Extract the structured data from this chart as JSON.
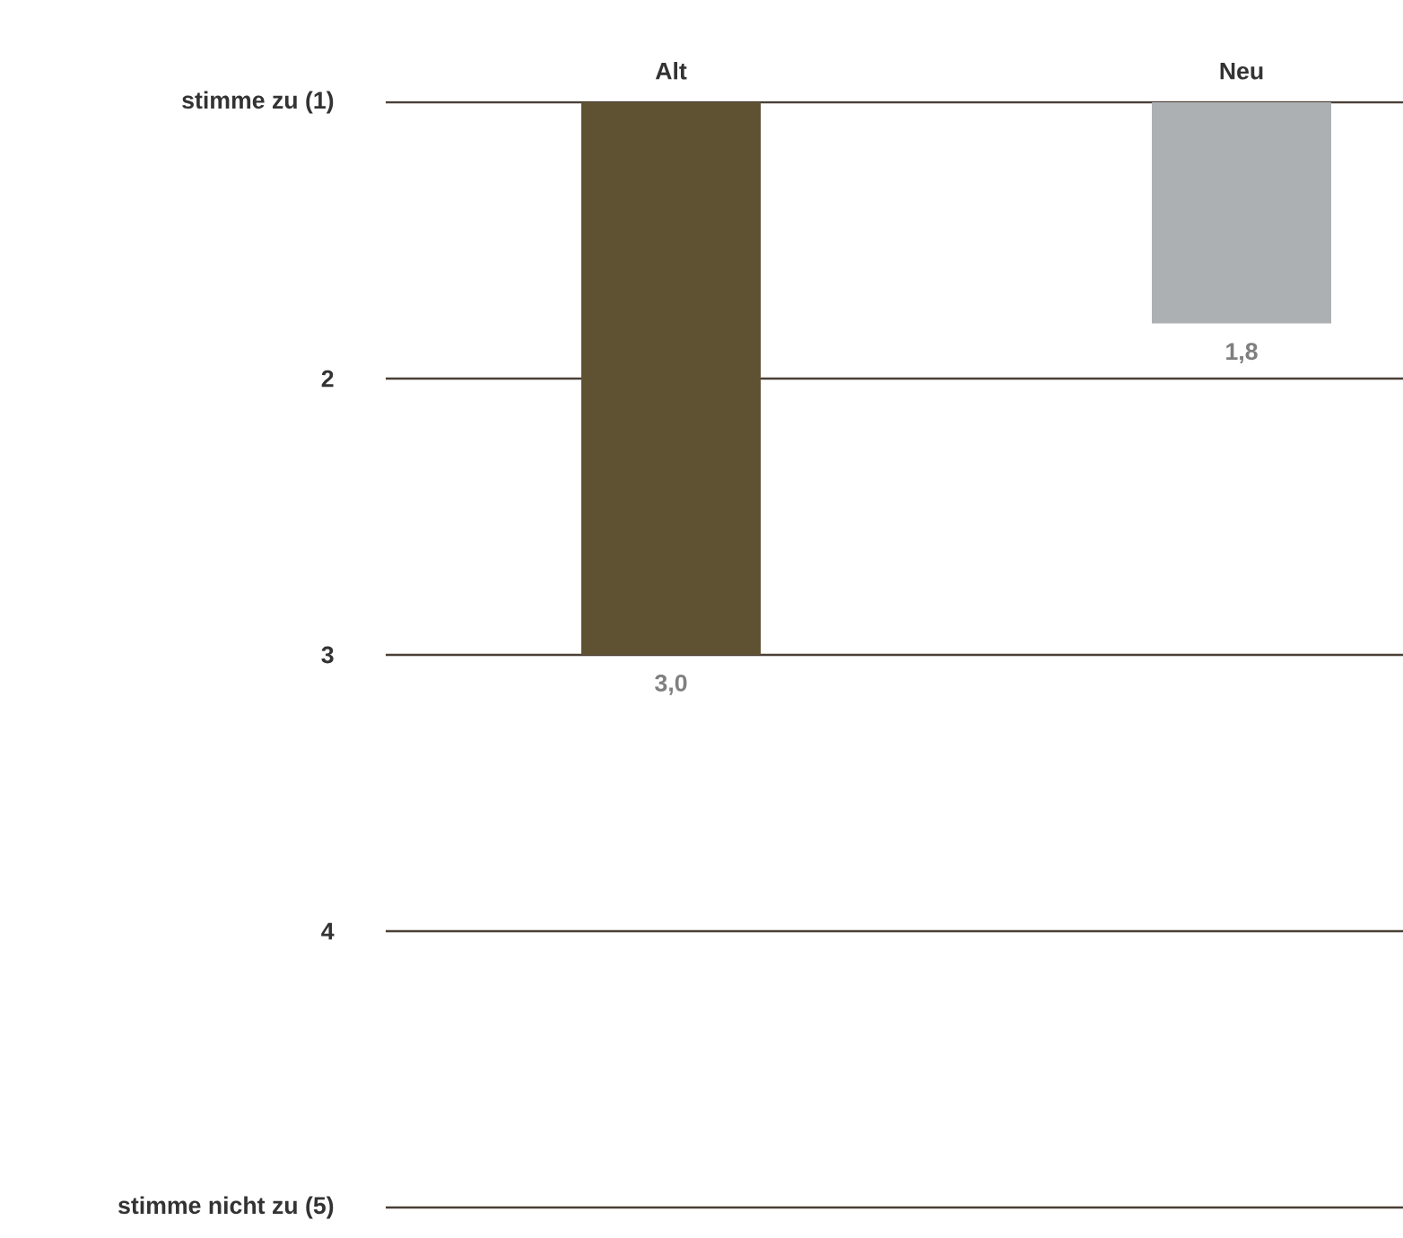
{
  "chart_data": {
    "type": "bar",
    "categories": [
      "Alt",
      "Neu"
    ],
    "values": [
      3.0,
      1.8
    ],
    "colors": [
      "#5f5232",
      "#adb0b3"
    ],
    "value_labels": [
      "3,0",
      "1,8"
    ],
    "ylim": [
      5,
      1
    ],
    "yticks": [
      {
        "value": 1,
        "label": "stimme zu (1)"
      },
      2,
      3,
      4,
      {
        "value": 5,
        "label": "stimme nicht zu (5)"
      }
    ],
    "grid": "y"
  }
}
